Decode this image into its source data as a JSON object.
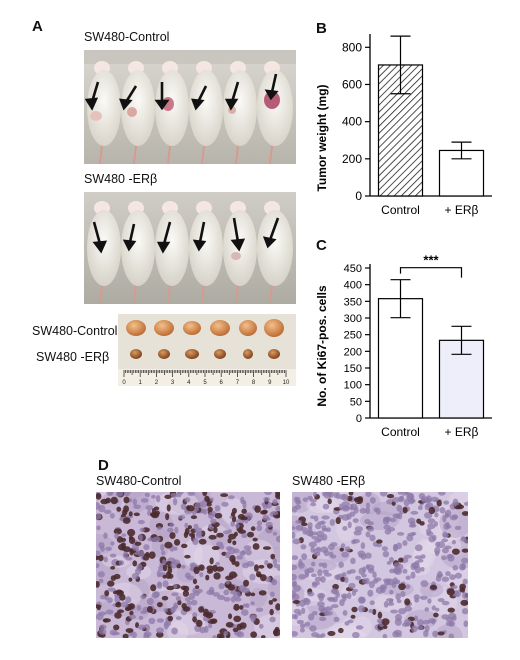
{
  "panels": {
    "a": {
      "letter": "A",
      "label_control": "SW480-Control",
      "label_treated": "SW480 -ERβ",
      "tumor_label_control": "SW480-Control",
      "tumor_label_treated": "SW480 -ERβ",
      "ruler_numbers": [
        "0",
        "1",
        "2",
        "3",
        "4",
        "5",
        "6",
        "7",
        "8",
        "9",
        "10"
      ]
    },
    "b": {
      "letter": "B"
    },
    "c": {
      "letter": "C"
    },
    "d": {
      "letter": "D",
      "label_control": "SW480-Control",
      "label_treated": "SW480 -ERβ"
    }
  },
  "chart_data": [
    {
      "type": "bar",
      "categories": [
        "Control",
        "+ ERβ"
      ],
      "values": [
        705,
        245
      ],
      "errors": [
        155,
        45
      ],
      "ylabel": "Tumor weight (mg)",
      "ylim": [
        0,
        850
      ],
      "yticks": [
        0,
        200,
        400,
        600,
        800
      ],
      "fills": [
        "hatched",
        "#ffffff"
      ]
    },
    {
      "type": "bar",
      "categories": [
        "Control",
        "+ ERβ"
      ],
      "values": [
        358,
        233
      ],
      "errors": [
        57,
        42
      ],
      "ylabel": "No. of Ki67-pos. cells",
      "ylim": [
        0,
        450
      ],
      "yticks": [
        0,
        50,
        100,
        150,
        200,
        250,
        300,
        350,
        400,
        450
      ],
      "fills": [
        "#ffffff",
        "#eeeefa"
      ],
      "significance": "***"
    }
  ]
}
